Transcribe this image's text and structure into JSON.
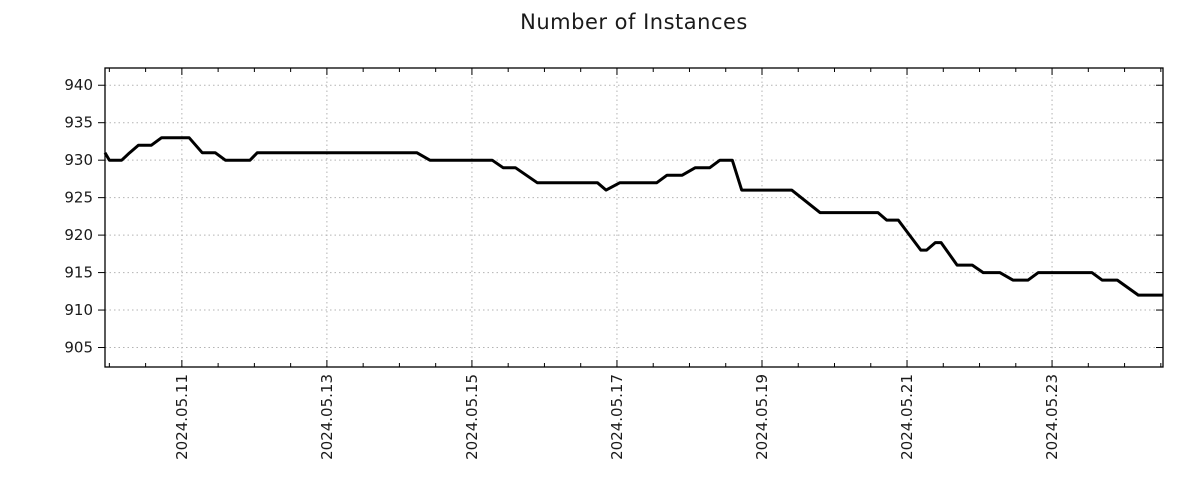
{
  "page": {
    "background_color": "#ffffff"
  },
  "chart_data": {
    "type": "line",
    "title": "Number of Instances",
    "xlabel": "",
    "ylabel": "",
    "legend": "none",
    "grid": "dotted",
    "colors": {
      "line": "#000000",
      "grid": "#b3b3b3",
      "axis": "#000000",
      "text": "#1a1a1a",
      "background": "#ffffff"
    },
    "x_axis": {
      "unit": "date (May 2024, day-of-month)",
      "min": 9.94,
      "max": 24.53,
      "minor_tick_step": 0.5,
      "minor_tick_start": 10.0,
      "minor_tick_end": 24.5,
      "major_ticks": [
        {
          "day": 11,
          "label": "2024.05.11"
        },
        {
          "day": 13,
          "label": "2024.05.13"
        },
        {
          "day": 15,
          "label": "2024.05.15"
        },
        {
          "day": 17,
          "label": "2024.05.17"
        },
        {
          "day": 19,
          "label": "2024.05.19"
        },
        {
          "day": 21,
          "label": "2024.05.21"
        },
        {
          "day": 23,
          "label": "2024.05.23"
        }
      ]
    },
    "y_axis": {
      "min": 902.4,
      "max": 942.3,
      "ticks": [
        905,
        910,
        915,
        920,
        925,
        930,
        935,
        940
      ]
    },
    "series": [
      {
        "name": "instances",
        "color": "#000000",
        "points": [
          [
            9.94,
            931
          ],
          [
            10.0,
            930
          ],
          [
            10.17,
            930
          ],
          [
            10.28,
            931
          ],
          [
            10.4,
            932
          ],
          [
            10.58,
            932
          ],
          [
            10.72,
            933
          ],
          [
            11.1,
            933
          ],
          [
            11.28,
            931
          ],
          [
            11.46,
            931
          ],
          [
            11.6,
            930
          ],
          [
            11.94,
            930
          ],
          [
            12.04,
            931
          ],
          [
            14.24,
            931
          ],
          [
            14.42,
            930
          ],
          [
            15.28,
            930
          ],
          [
            15.43,
            929
          ],
          [
            15.6,
            929
          ],
          [
            15.9,
            927
          ],
          [
            16.73,
            927
          ],
          [
            16.85,
            926
          ],
          [
            17.04,
            927
          ],
          [
            17.55,
            927
          ],
          [
            17.69,
            928
          ],
          [
            17.9,
            928
          ],
          [
            18.08,
            929
          ],
          [
            18.28,
            929
          ],
          [
            18.42,
            930
          ],
          [
            18.59,
            930
          ],
          [
            18.72,
            926
          ],
          [
            19.41,
            926
          ],
          [
            19.8,
            923
          ],
          [
            20.6,
            923
          ],
          [
            20.72,
            922
          ],
          [
            20.88,
            922
          ],
          [
            21.19,
            918
          ],
          [
            21.27,
            918
          ],
          [
            21.39,
            919
          ],
          [
            21.47,
            919
          ],
          [
            21.69,
            916
          ],
          [
            21.9,
            916
          ],
          [
            22.05,
            915
          ],
          [
            22.28,
            915
          ],
          [
            22.46,
            914
          ],
          [
            22.67,
            914
          ],
          [
            22.81,
            915
          ],
          [
            23.55,
            915
          ],
          [
            23.69,
            914
          ],
          [
            23.9,
            914
          ],
          [
            24.19,
            912
          ],
          [
            24.53,
            912
          ]
        ]
      }
    ]
  }
}
